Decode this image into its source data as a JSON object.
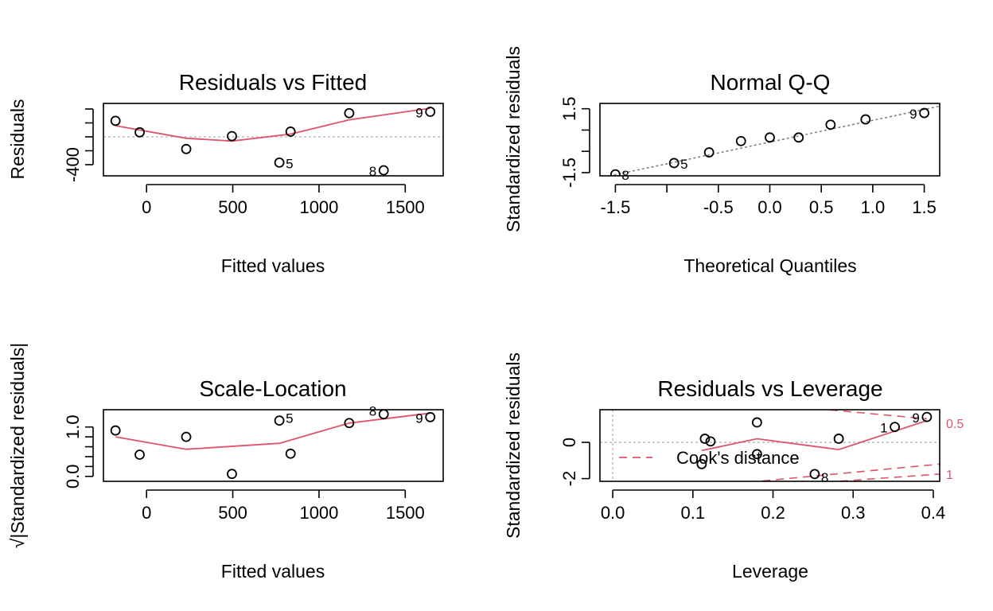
{
  "colors": {
    "fit": "#DF536B",
    "points": "#000000",
    "reference": "#bebebe",
    "qqline": "#808080"
  },
  "chart_data": [
    {
      "type": "scatter",
      "title": "Residuals vs Fitted",
      "xlabel": "Fitted values",
      "ylabel": "Residuals",
      "xlim": [
        -250,
        1720
      ],
      "ylim": [
        -560,
        480
      ],
      "xticks": [
        0,
        500,
        1000,
        1500
      ],
      "xtick_labels": [
        "0",
        "500",
        "1000",
        "1500"
      ],
      "yticks": [
        -400,
        -200,
        0,
        200,
        400
      ],
      "ytick_labels": [
        "-400",
        "",
        "",
        "",
        ""
      ],
      "hline": 0,
      "points": [
        {
          "x": -180,
          "y": 230,
          "label": ""
        },
        {
          "x": -40,
          "y": 65,
          "label": ""
        },
        {
          "x": 230,
          "y": -175,
          "label": ""
        },
        {
          "x": 495,
          "y": 10,
          "label": ""
        },
        {
          "x": 770,
          "y": -370,
          "label": "5"
        },
        {
          "x": 835,
          "y": 75,
          "label": ""
        },
        {
          "x": 1175,
          "y": 340,
          "label": ""
        },
        {
          "x": 1375,
          "y": -480,
          "label": "8"
        },
        {
          "x": 1645,
          "y": 360,
          "label": "9"
        }
      ],
      "smooth": [
        {
          "x": -180,
          "y": 160
        },
        {
          "x": 230,
          "y": -20
        },
        {
          "x": 495,
          "y": -60
        },
        {
          "x": 835,
          "y": 40
        },
        {
          "x": 1175,
          "y": 245
        },
        {
          "x": 1645,
          "y": 410
        }
      ]
    },
    {
      "type": "scatter",
      "title": "Normal Q-Q",
      "xlabel": "Theoretical Quantiles",
      "ylabel": "Standardized residuals",
      "xlim": [
        -1.65,
        1.65
      ],
      "ylim": [
        -1.65,
        1.75
      ],
      "xticks": [
        -1.5,
        -1.0,
        -0.5,
        0.0,
        0.5,
        1.0,
        1.5
      ],
      "xtick_labels": [
        "-1.5",
        "",
        "-0.5",
        "0.0",
        "0.5",
        "1.0",
        "1.5"
      ],
      "yticks": [
        -1.5,
        -0.5,
        0.5,
        1.5
      ],
      "ytick_labels": [
        "-1.5",
        "",
        "",
        "1.5"
      ],
      "qqline": [
        {
          "x": -1.65,
          "y": -1.75
        },
        {
          "x": 1.65,
          "y": 1.62
        }
      ],
      "points": [
        {
          "x": -1.5,
          "y": -1.58,
          "label": "8"
        },
        {
          "x": -0.93,
          "y": -1.05,
          "label": "5"
        },
        {
          "x": -0.59,
          "y": -0.55,
          "label": ""
        },
        {
          "x": -0.28,
          "y": -0.02,
          "label": ""
        },
        {
          "x": 0.0,
          "y": 0.15,
          "label": ""
        },
        {
          "x": 0.28,
          "y": 0.15,
          "label": ""
        },
        {
          "x": 0.59,
          "y": 0.75,
          "label": ""
        },
        {
          "x": 0.93,
          "y": 1.0,
          "label": ""
        },
        {
          "x": 1.5,
          "y": 1.3,
          "label": "9"
        }
      ]
    },
    {
      "type": "scatter",
      "title": "Scale-Location",
      "xlabel": "Fitted values",
      "ylabel": "√|Standardized residuals|",
      "xlim": [
        -250,
        1720
      ],
      "ylim": [
        -0.1,
        1.35
      ],
      "xticks": [
        0,
        500,
        1000,
        1500
      ],
      "xtick_labels": [
        "0",
        "500",
        "1000",
        "1500"
      ],
      "yticks": [
        0.0,
        0.2,
        0.4,
        0.6,
        0.8,
        1.0
      ],
      "ytick_labels": [
        "0.0",
        "",
        "",
        "",
        "",
        "1.0"
      ],
      "points": [
        {
          "x": -180,
          "y": 0.93,
          "label": ""
        },
        {
          "x": -40,
          "y": 0.44,
          "label": ""
        },
        {
          "x": 230,
          "y": 0.8,
          "label": ""
        },
        {
          "x": 495,
          "y": 0.05,
          "label": ""
        },
        {
          "x": 770,
          "y": 1.13,
          "label": "5"
        },
        {
          "x": 835,
          "y": 0.46,
          "label": ""
        },
        {
          "x": 1175,
          "y": 1.08,
          "label": ""
        },
        {
          "x": 1375,
          "y": 1.26,
          "label": "8"
        },
        {
          "x": 1645,
          "y": 1.2,
          "label": "9"
        }
      ],
      "smooth": [
        {
          "x": -180,
          "y": 0.8
        },
        {
          "x": 230,
          "y": 0.55
        },
        {
          "x": 770,
          "y": 0.67
        },
        {
          "x": 1175,
          "y": 1.08
        },
        {
          "x": 1645,
          "y": 1.28
        }
      ]
    },
    {
      "type": "scatter",
      "title": "Residuals vs Leverage",
      "xlabel": "Leverage",
      "ylabel": "Standardized residuals",
      "xlim": [
        -0.016,
        0.408
      ],
      "ylim": [
        -2.15,
        1.8
      ],
      "xticks": [
        0.0,
        0.1,
        0.2,
        0.3,
        0.4
      ],
      "xtick_labels": [
        "0.0",
        "0.1",
        "0.2",
        "0.3",
        "0.4"
      ],
      "yticks": [
        -2,
        0
      ],
      "ytick_labels": [
        "-2",
        "0"
      ],
      "hline": 0,
      "vline": 0,
      "points": [
        {
          "x": 0.111,
          "y": -1.2,
          "label": ""
        },
        {
          "x": 0.115,
          "y": 0.2,
          "label": ""
        },
        {
          "x": 0.122,
          "y": 0.05,
          "label": ""
        },
        {
          "x": 0.18,
          "y": 1.1,
          "label": ""
        },
        {
          "x": 0.18,
          "y": -0.65,
          "label": ""
        },
        {
          "x": 0.252,
          "y": -1.75,
          "label": "8"
        },
        {
          "x": 0.282,
          "y": 0.2,
          "label": ""
        },
        {
          "x": 0.352,
          "y": 0.85,
          "label": "1"
        },
        {
          "x": 0.392,
          "y": 1.4,
          "label": "9"
        }
      ],
      "smooth": [
        {
          "x": 0.111,
          "y": -0.45
        },
        {
          "x": 0.18,
          "y": 0.2
        },
        {
          "x": 0.282,
          "y": -0.4
        },
        {
          "x": 0.392,
          "y": 1.2
        }
      ],
      "cook_contours": [
        {
          "label": "0.5",
          "upper": [
            {
              "x": 0.17,
              "y": 2.2
            },
            {
              "x": 0.392,
              "y": 1.3
            }
          ],
          "lower": [
            {
              "x": 0.17,
              "y": -2.2
            },
            {
              "x": 0.408,
              "y": -1.2
            }
          ]
        },
        {
          "label": "1",
          "lower": [
            {
              "x": 0.25,
              "y": -2.25
            },
            {
              "x": 0.408,
              "y": -1.75
            }
          ]
        }
      ],
      "cook_labels": [
        {
          "text": "0.5",
          "y": 1.05
        },
        {
          "text": "1",
          "y": -1.75
        }
      ],
      "legend": {
        "label": "Cook's distance",
        "position": "left"
      }
    }
  ]
}
